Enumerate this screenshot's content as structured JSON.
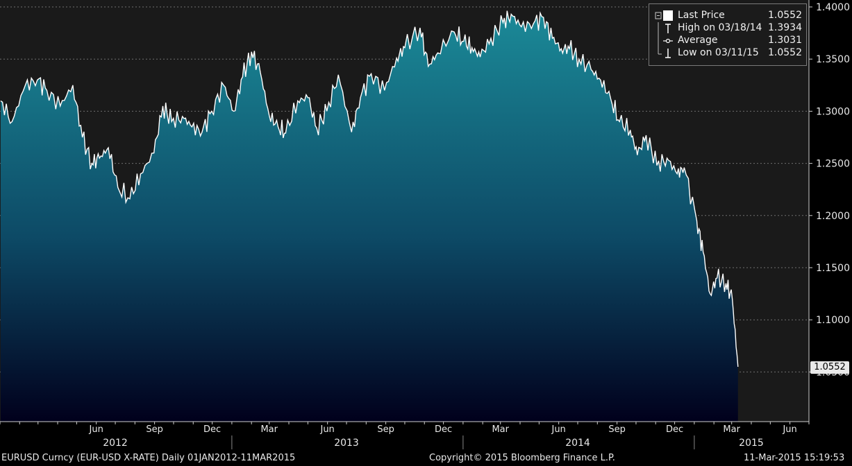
{
  "legend": {
    "last": {
      "label": "Last Price",
      "value": "1.0552"
    },
    "high": {
      "label": "High on 03/18/14",
      "value": "1.3934"
    },
    "average": {
      "label": "Average",
      "value": "1.3031"
    },
    "low": {
      "label": "Low on 03/11/15",
      "value": "1.0552"
    }
  },
  "last_price_tag": "1.0552",
  "footer": {
    "security": "EURUSD Curncy (EUR-USD X-RATE)  Daily 01JAN2012-11MAR2015",
    "copyright": "Copyright© 2015 Bloomberg Finance L.P.",
    "timestamp": "11-Mar-2015 15:19:53"
  },
  "colors": {
    "background_plot": "#1a1a1a",
    "background_right": "#000000",
    "grid": "#707070",
    "line": "#ffffff",
    "area_top": "#1b8a98",
    "area_bottom": "#01001c"
  },
  "chart_data": {
    "type": "area",
    "title": "",
    "xlabel": "",
    "ylabel": "",
    "ylim": [
      1.0,
      1.4
    ],
    "yticks": [
      "1.4000",
      "1.3500",
      "1.3000",
      "1.2500",
      "1.2000",
      "1.1500",
      "1.1000",
      "1.0500"
    ],
    "xticks_month": [
      "Jun",
      "Sep",
      "Dec",
      "Mar",
      "Jun",
      "Sep",
      "Dec",
      "Mar",
      "Jun",
      "Sep",
      "Dec",
      "Mar",
      "Jun"
    ],
    "xticks_year": [
      "2012",
      "2013",
      "2014",
      "2015"
    ],
    "grid": true,
    "legend_position": "top-right",
    "series": [
      {
        "name": "Last Price",
        "x": [
          "2012-01-02",
          "2012-01-20",
          "2012-02-10",
          "2012-02-29",
          "2012-03-15",
          "2012-04-05",
          "2012-04-25",
          "2012-05-10",
          "2012-05-25",
          "2012-06-06",
          "2012-06-20",
          "2012-07-05",
          "2012-07-24",
          "2012-08-10",
          "2012-08-31",
          "2012-09-14",
          "2012-09-28",
          "2012-10-15",
          "2012-10-30",
          "2012-11-15",
          "2012-11-30",
          "2012-12-19",
          "2013-01-04",
          "2013-01-18",
          "2013-02-01",
          "2013-02-15",
          "2013-03-01",
          "2013-03-15",
          "2013-03-27",
          "2013-04-15",
          "2013-05-01",
          "2013-05-15",
          "2013-05-31",
          "2013-06-18",
          "2013-07-09",
          "2013-07-23",
          "2013-08-09",
          "2013-08-30",
          "2013-09-18",
          "2013-10-01",
          "2013-10-25",
          "2013-11-07",
          "2013-11-22",
          "2013-12-18",
          "2014-01-02",
          "2014-01-15",
          "2014-01-28",
          "2014-02-14",
          "2014-03-05",
          "2014-03-18",
          "2014-04-03",
          "2014-04-22",
          "2014-05-08",
          "2014-05-22",
          "2014-06-05",
          "2014-06-18",
          "2014-07-03",
          "2014-07-22",
          "2014-08-06",
          "2014-08-22",
          "2014-09-05",
          "2014-09-22",
          "2014-10-03",
          "2014-10-17",
          "2014-11-03",
          "2014-11-19",
          "2014-12-05",
          "2014-12-16",
          "2015-01-05",
          "2015-01-15",
          "2015-01-26",
          "2015-02-06",
          "2015-02-20",
          "2015-03-02",
          "2015-03-11"
        ],
        "values": [
          1.31,
          1.29,
          1.325,
          1.33,
          1.32,
          1.305,
          1.325,
          1.275,
          1.25,
          1.255,
          1.265,
          1.227,
          1.216,
          1.24,
          1.26,
          1.305,
          1.29,
          1.295,
          1.285,
          1.28,
          1.3,
          1.325,
          1.3,
          1.333,
          1.357,
          1.337,
          1.296,
          1.285,
          1.279,
          1.31,
          1.313,
          1.284,
          1.3,
          1.335,
          1.28,
          1.313,
          1.336,
          1.32,
          1.351,
          1.361,
          1.38,
          1.343,
          1.356,
          1.376,
          1.367,
          1.361,
          1.352,
          1.37,
          1.385,
          1.393,
          1.381,
          1.384,
          1.39,
          1.37,
          1.36,
          1.36,
          1.35,
          1.34,
          1.33,
          1.312,
          1.29,
          1.282,
          1.258,
          1.277,
          1.248,
          1.255,
          1.24,
          1.246,
          1.195,
          1.165,
          1.125,
          1.14,
          1.135,
          1.12,
          1.055
        ]
      }
    ]
  }
}
